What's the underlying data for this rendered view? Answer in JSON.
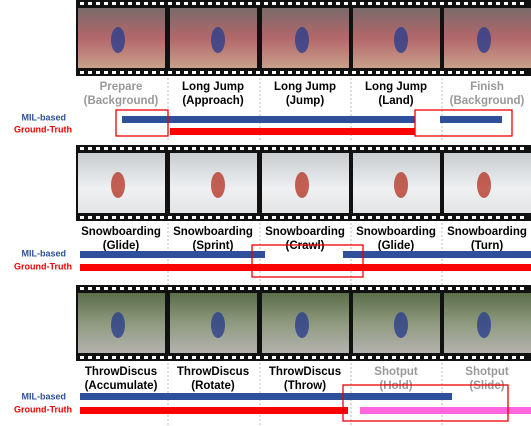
{
  "legend": {
    "mil": "MIL-based",
    "gt": "Ground-Truth"
  },
  "rows": [
    {
      "labels": [
        [
          "Prepare",
          "(Background)"
        ],
        [
          "Long Jump",
          "(Approach)"
        ],
        [
          "Long Jump",
          "(Jump)"
        ],
        [
          "Long Jump",
          "(Land)"
        ],
        [
          "Finish",
          "(Background)"
        ]
      ]
    },
    {
      "labels": [
        [
          "Snowboarding",
          "(Glide)"
        ],
        [
          "Snowboarding",
          "(Sprint)"
        ],
        [
          "Snowboarding",
          "(Crawl)"
        ],
        [
          "Snowboarding",
          "(Glide)"
        ],
        [
          "Snowboarding",
          "(Turn)"
        ]
      ]
    },
    {
      "labels": [
        [
          "ThrowDiscus",
          "(Accumulate)"
        ],
        [
          "ThrowDiscus",
          "(Rotate)"
        ],
        [
          "ThrowDiscus",
          "(Throw)"
        ],
        [
          "Shotput",
          "(Hold)"
        ],
        [
          "Shotput",
          "(Slide)"
        ]
      ]
    }
  ]
}
